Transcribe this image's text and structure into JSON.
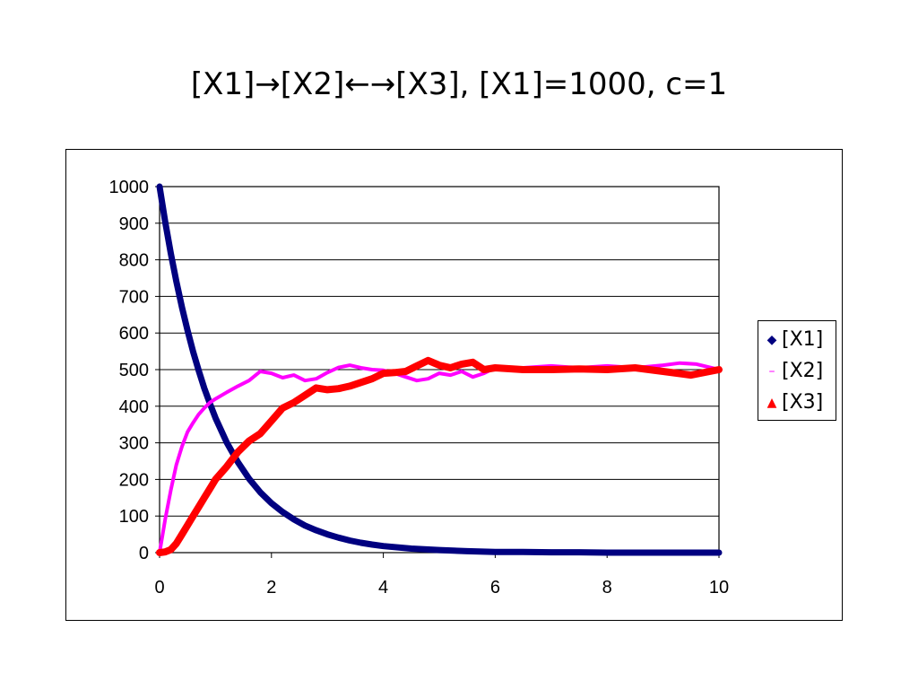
{
  "slide": {
    "title": "[X1]→[X2]←→[X3], [X1]=1000, c=1"
  },
  "chart_data": {
    "type": "line",
    "title": "[X1]→[X2]←→[X3], [X1]=1000, c=1",
    "xlabel": "",
    "ylabel": "",
    "xlim": [
      0,
      10
    ],
    "ylim": [
      0,
      1000
    ],
    "x_ticks": [
      "0",
      "2",
      "4",
      "6",
      "8",
      "10"
    ],
    "x_tick_values": [
      0,
      2,
      4,
      6,
      8,
      10
    ],
    "y_ticks": [
      "0",
      "100",
      "200",
      "300",
      "400",
      "500",
      "600",
      "700",
      "800",
      "900",
      "1000"
    ],
    "y_tick_values": [
      0,
      100,
      200,
      300,
      400,
      500,
      600,
      700,
      800,
      900,
      1000
    ],
    "grid": "horizontal",
    "legend_position": "right",
    "series": [
      {
        "name": "[X1]",
        "color": "#000080",
        "marker": "diamond",
        "x": [
          0,
          0.1,
          0.2,
          0.3,
          0.4,
          0.5,
          0.6,
          0.7,
          0.8,
          0.9,
          1.0,
          1.2,
          1.4,
          1.6,
          1.8,
          2.0,
          2.2,
          2.4,
          2.6,
          2.8,
          3.0,
          3.2,
          3.4,
          3.6,
          3.8,
          4.0,
          4.5,
          5.0,
          5.5,
          6.0,
          6.5,
          7.0,
          7.5,
          8.0,
          8.5,
          9.0,
          9.5,
          10.0
        ],
        "y": [
          1000,
          905,
          818,
          741,
          670,
          607,
          549,
          497,
          449,
          407,
          368,
          301,
          247,
          202,
          165,
          135,
          111,
          91,
          74,
          61,
          50,
          41,
          33,
          27,
          22,
          18,
          11,
          7,
          4,
          2,
          2,
          1,
          1,
          0,
          0,
          0,
          0,
          0
        ]
      },
      {
        "name": "[X2]",
        "color": "#ff00ff",
        "marker": "dash",
        "x": [
          0,
          0.1,
          0.2,
          0.3,
          0.4,
          0.5,
          0.6,
          0.7,
          0.8,
          0.9,
          1.0,
          1.2,
          1.4,
          1.6,
          1.8,
          2.0,
          2.2,
          2.4,
          2.6,
          2.8,
          3.0,
          3.2,
          3.4,
          3.6,
          3.8,
          4.0,
          4.2,
          4.4,
          4.6,
          4.8,
          5.0,
          5.2,
          5.4,
          5.6,
          5.8,
          6.0,
          6.5,
          7.0,
          7.5,
          8.0,
          8.5,
          9.0,
          9.3,
          9.6,
          10.0
        ],
        "y": [
          0,
          90,
          170,
          240,
          290,
          330,
          355,
          378,
          395,
          410,
          420,
          438,
          455,
          470,
          495,
          490,
          478,
          485,
          470,
          475,
          492,
          506,
          512,
          505,
          500,
          498,
          490,
          480,
          470,
          475,
          490,
          485,
          495,
          480,
          490,
          505,
          505,
          510,
          505,
          510,
          505,
          512,
          518,
          515,
          500
        ]
      },
      {
        "name": "[X3]",
        "color": "#ff0000",
        "marker": "triangle",
        "x": [
          0,
          0.1,
          0.2,
          0.3,
          0.4,
          0.5,
          0.6,
          0.7,
          0.8,
          0.9,
          1.0,
          1.2,
          1.4,
          1.6,
          1.8,
          2.0,
          2.2,
          2.4,
          2.6,
          2.8,
          3.0,
          3.2,
          3.4,
          3.6,
          3.8,
          4.0,
          4.2,
          4.4,
          4.6,
          4.8,
          5.0,
          5.2,
          5.4,
          5.6,
          5.8,
          6.0,
          6.5,
          7.0,
          7.5,
          8.0,
          8.5,
          9.0,
          9.5,
          10.0
        ],
        "y": [
          0,
          2,
          8,
          25,
          50,
          75,
          100,
          125,
          150,
          175,
          200,
          235,
          275,
          305,
          325,
          360,
          395,
          410,
          430,
          450,
          445,
          448,
          455,
          465,
          475,
          490,
          492,
          495,
          510,
          525,
          512,
          505,
          515,
          520,
          500,
          505,
          500,
          500,
          502,
          500,
          505,
          495,
          485,
          500
        ]
      }
    ]
  }
}
